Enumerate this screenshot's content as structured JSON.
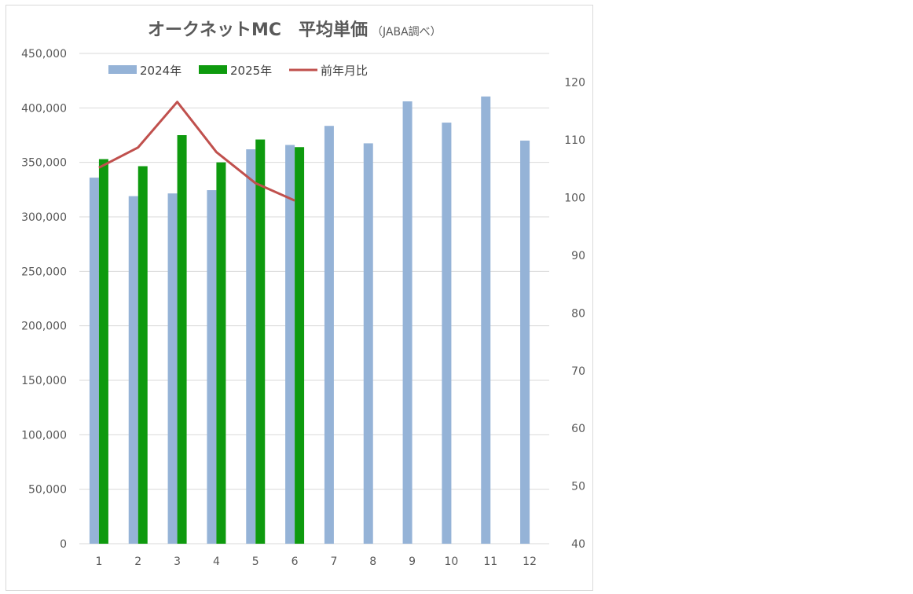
{
  "chart_data": {
    "type": "bar",
    "title": "オークネットMC　平均単価",
    "subtitle": "（JABA調べ）",
    "categories": [
      "1",
      "2",
      "3",
      "4",
      "5",
      "6",
      "7",
      "8",
      "9",
      "10",
      "11",
      "12"
    ],
    "series": [
      {
        "name": "2024年",
        "type": "bar",
        "axis": "left",
        "color": "#95B3D7",
        "values": [
          336000,
          319000,
          321500,
          324500,
          362000,
          366000,
          383500,
          367500,
          406000,
          386500,
          410500,
          370000
        ]
      },
      {
        "name": "2025年",
        "type": "bar",
        "axis": "left",
        "color": "#0E9A0E",
        "values": [
          353000,
          346500,
          375000,
          350000,
          371000,
          364000,
          null,
          null,
          null,
          null,
          null,
          null
        ]
      },
      {
        "name": "前年月比",
        "type": "line",
        "axis": "right",
        "color": "#C0504D",
        "values": [
          105.2,
          108.7,
          116.6,
          107.9,
          102.5,
          99.5,
          null,
          null,
          null,
          null,
          null,
          null
        ]
      }
    ],
    "y_left": {
      "min": 0,
      "max": 450000,
      "step": 50000,
      "ticks": [
        "0",
        "50,000",
        "100,000",
        "150,000",
        "200,000",
        "250,000",
        "300,000",
        "350,000",
        "400,000",
        "450,000"
      ]
    },
    "y_right": {
      "min": 40,
      "max": 125,
      "ticks": [
        "40",
        "50",
        "60",
        "70",
        "80",
        "90",
        "100",
        "110",
        "120"
      ]
    },
    "grid": true,
    "legend_position": "top-left"
  }
}
